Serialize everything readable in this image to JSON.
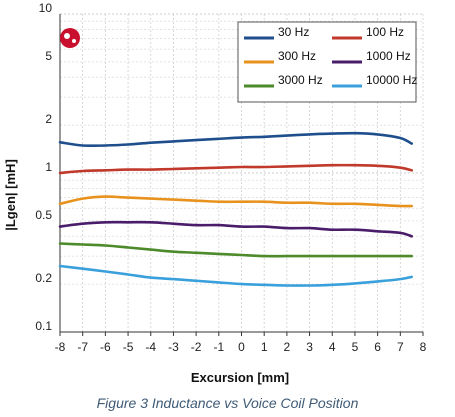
{
  "caption": "Figure 3 Inductance vs Voice Coil Position",
  "logo_icon": "speaker-logo-icon",
  "chart_data": {
    "type": "line",
    "xlabel": "Excursion [mm]",
    "ylabel": "|Lgen| [mH]",
    "xlim": [
      -8,
      8
    ],
    "ylim": [
      0.1,
      10
    ],
    "yscale": "log",
    "grid": true,
    "legend_position": "top-right",
    "xticks": [
      -8,
      -7,
      -6,
      -5,
      -4,
      -3,
      -2,
      -1,
      0,
      1,
      2,
      3,
      4,
      5,
      6,
      7,
      8
    ],
    "xtick_labels": [
      "-8",
      "-7",
      "-6",
      "-5",
      "-4",
      "-3",
      "-2",
      "-1",
      "0",
      "1",
      "2",
      "3",
      "4",
      "5",
      "6",
      "7",
      "8"
    ],
    "yticks": [
      0.1,
      0.2,
      0.5,
      1,
      2,
      5,
      10
    ],
    "ytick_labels": [
      "0.1",
      "0.2",
      "0.5",
      "1",
      "2",
      "5",
      "10"
    ],
    "x": [
      -8,
      -7,
      -6,
      -5,
      -4,
      -3,
      -2,
      -1,
      0,
      1,
      2,
      3,
      4,
      5,
      6,
      7,
      7.5
    ],
    "series": [
      {
        "name": "30 Hz",
        "color": "#1f4e8c",
        "values": [
          1.56,
          1.49,
          1.49,
          1.51,
          1.55,
          1.58,
          1.61,
          1.64,
          1.67,
          1.69,
          1.72,
          1.75,
          1.77,
          1.78,
          1.75,
          1.66,
          1.53
        ]
      },
      {
        "name": "100 Hz",
        "color": "#c0392b",
        "values": [
          1.0,
          1.03,
          1.04,
          1.05,
          1.05,
          1.06,
          1.07,
          1.08,
          1.09,
          1.09,
          1.1,
          1.11,
          1.12,
          1.12,
          1.11,
          1.08,
          1.04
        ]
      },
      {
        "name": "300 Hz",
        "color": "#e8921e",
        "values": [
          0.64,
          0.69,
          0.71,
          0.7,
          0.69,
          0.68,
          0.67,
          0.66,
          0.66,
          0.66,
          0.65,
          0.65,
          0.64,
          0.64,
          0.63,
          0.62,
          0.62
        ]
      },
      {
        "name": "1000 Hz",
        "color": "#4a1d6b",
        "values": [
          0.46,
          0.48,
          0.49,
          0.49,
          0.49,
          0.48,
          0.47,
          0.47,
          0.46,
          0.46,
          0.45,
          0.45,
          0.44,
          0.44,
          0.43,
          0.42,
          0.4
        ]
      },
      {
        "name": "3000 Hz",
        "color": "#4c8a2a",
        "values": [
          0.36,
          0.355,
          0.35,
          0.34,
          0.33,
          0.32,
          0.315,
          0.31,
          0.305,
          0.3,
          0.3,
          0.3,
          0.3,
          0.3,
          0.3,
          0.3,
          0.3
        ]
      },
      {
        "name": "10000 Hz",
        "color": "#3aa0dc",
        "values": [
          0.26,
          0.25,
          0.24,
          0.23,
          0.22,
          0.215,
          0.21,
          0.205,
          0.2,
          0.198,
          0.196,
          0.196,
          0.198,
          0.202,
          0.208,
          0.215,
          0.222
        ]
      }
    ]
  }
}
